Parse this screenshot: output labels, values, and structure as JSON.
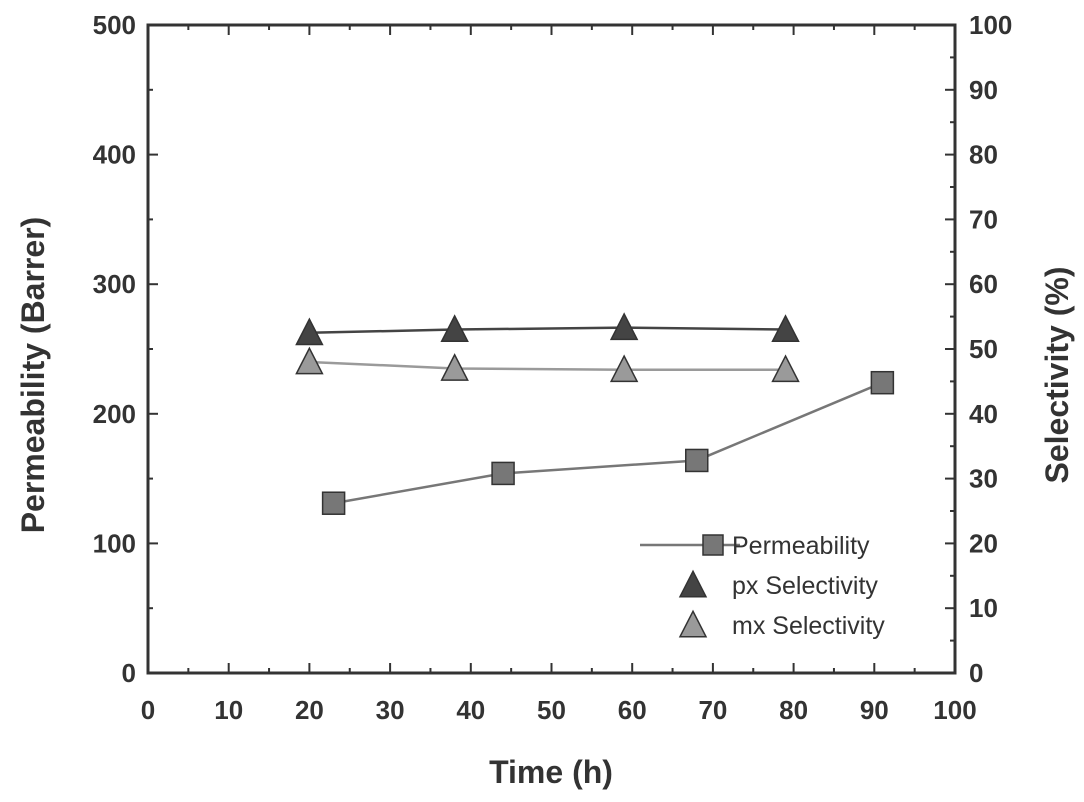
{
  "chart_data": {
    "type": "line",
    "xlabel": "Time (h)",
    "ylabel": "Permeability (Barrer)",
    "y2label": "Selectivity (%)",
    "xlim": [
      0,
      100
    ],
    "ylim": [
      0,
      500
    ],
    "y2lim": [
      0,
      100
    ],
    "xticks": [
      "0",
      "10",
      "20",
      "30",
      "40",
      "50",
      "60",
      "70",
      "80",
      "90",
      "100"
    ],
    "yticks": [
      "0",
      "100",
      "200",
      "300",
      "400",
      "500"
    ],
    "y2ticks": [
      "0",
      "10",
      "20",
      "30",
      "40",
      "50",
      "60",
      "70",
      "80",
      "90",
      "100"
    ],
    "legend_position": "bottom-right",
    "series": [
      {
        "name": "Permeability",
        "axis": "left",
        "marker": "square",
        "color": "#777777",
        "x": [
          23,
          44,
          68,
          91
        ],
        "y": [
          131,
          154,
          164,
          224
        ]
      },
      {
        "name": "px Selectivity",
        "axis": "right",
        "marker": "triangle",
        "color": "#444444",
        "x": [
          20,
          38,
          59,
          79
        ],
        "y": [
          52.5,
          53,
          53.3,
          53
        ]
      },
      {
        "name": "mx Selectivity",
        "axis": "right",
        "marker": "triangle",
        "color": "#9a9a9a",
        "x": [
          20,
          38,
          59,
          79
        ],
        "y": [
          48,
          47,
          46.8,
          46.8
        ]
      }
    ]
  }
}
